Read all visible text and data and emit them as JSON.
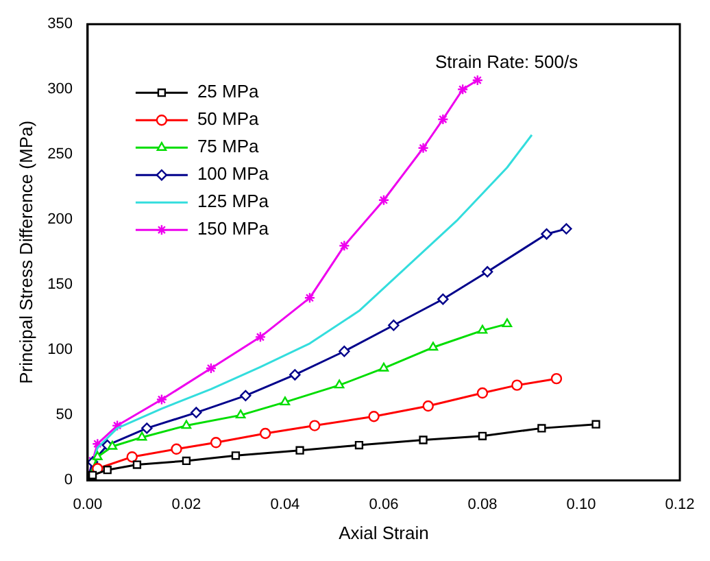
{
  "chart_data": {
    "type": "line",
    "xlabel": "Axial Strain",
    "ylabel": "Principal Stress Difference (MPa)",
    "annotations": [
      "Strain Rate: 500/s"
    ],
    "xlim": [
      0,
      0.12
    ],
    "xticks": [
      {
        "value": 0,
        "label": "0.00"
      },
      {
        "value": 0.02,
        "label": "0.02"
      },
      {
        "value": 0.04,
        "label": "0.04"
      },
      {
        "value": 0.06,
        "label": "0.06"
      },
      {
        "value": 0.08,
        "label": "0.08"
      },
      {
        "value": 0.1,
        "label": "0.10"
      },
      {
        "value": 0.12,
        "label": "0.12"
      }
    ],
    "ylim": [
      0,
      350
    ],
    "yticks": [
      0,
      50,
      100,
      150,
      200,
      250,
      300,
      350
    ],
    "grid": false,
    "legend": "top left",
    "line_style": "solid",
    "series": [
      {
        "name": "25 MPa",
        "color": "#000000",
        "marker": "square",
        "x": [
          0,
          0.001,
          0.004,
          0.01,
          0.02,
          0.03,
          0.043,
          0.055,
          0.068,
          0.08,
          0.092,
          0.103
        ],
        "values": [
          0,
          4,
          8,
          12,
          15,
          19,
          23,
          27,
          31,
          34,
          40,
          43
        ]
      },
      {
        "name": "50 MPa",
        "color": "#ff0000",
        "marker": "circle",
        "x": [
          0,
          0.002,
          0.009,
          0.018,
          0.026,
          0.036,
          0.046,
          0.058,
          0.069,
          0.08,
          0.087,
          0.095
        ],
        "values": [
          0,
          9,
          18,
          24,
          29,
          36,
          42,
          49,
          57,
          67,
          73,
          78
        ]
      },
      {
        "name": "75 MPa",
        "color": "#00dd00",
        "marker": "triangle",
        "x": [
          0,
          0.002,
          0.005,
          0.011,
          0.02,
          0.031,
          0.04,
          0.051,
          0.06,
          0.07,
          0.08,
          0.085
        ],
        "values": [
          0,
          18,
          26,
          33,
          42,
          50,
          60,
          73,
          86,
          102,
          115,
          120
        ]
      },
      {
        "name": "100 MPa",
        "color": "#00008b",
        "marker": "diamond",
        "x": [
          0,
          0.001,
          0.004,
          0.012,
          0.022,
          0.032,
          0.042,
          0.052,
          0.062,
          0.072,
          0.081,
          0.093,
          0.097
        ],
        "values": [
          0,
          14,
          27,
          40,
          52,
          65,
          81,
          99,
          119,
          139,
          160,
          189,
          193
        ]
      },
      {
        "name": "125 MPa",
        "color": "#33dddd",
        "marker": "none",
        "x": [
          0,
          0.002,
          0.006,
          0.015,
          0.025,
          0.035,
          0.045,
          0.055,
          0.065,
          0.075,
          0.085,
          0.09
        ],
        "values": [
          0,
          25,
          40,
          55,
          70,
          87,
          105,
          130,
          165,
          200,
          240,
          265
        ]
      },
      {
        "name": "150 MPa",
        "color": "#ee00ee",
        "marker": "cross",
        "x": [
          0,
          0.001,
          0.002,
          0.006,
          0.015,
          0.025,
          0.035,
          0.045,
          0.052,
          0.06,
          0.068,
          0.072,
          0.076,
          0.079
        ],
        "values": [
          0,
          15,
          28,
          42,
          62,
          86,
          110,
          140,
          180,
          215,
          255,
          277,
          300,
          307
        ]
      }
    ]
  }
}
